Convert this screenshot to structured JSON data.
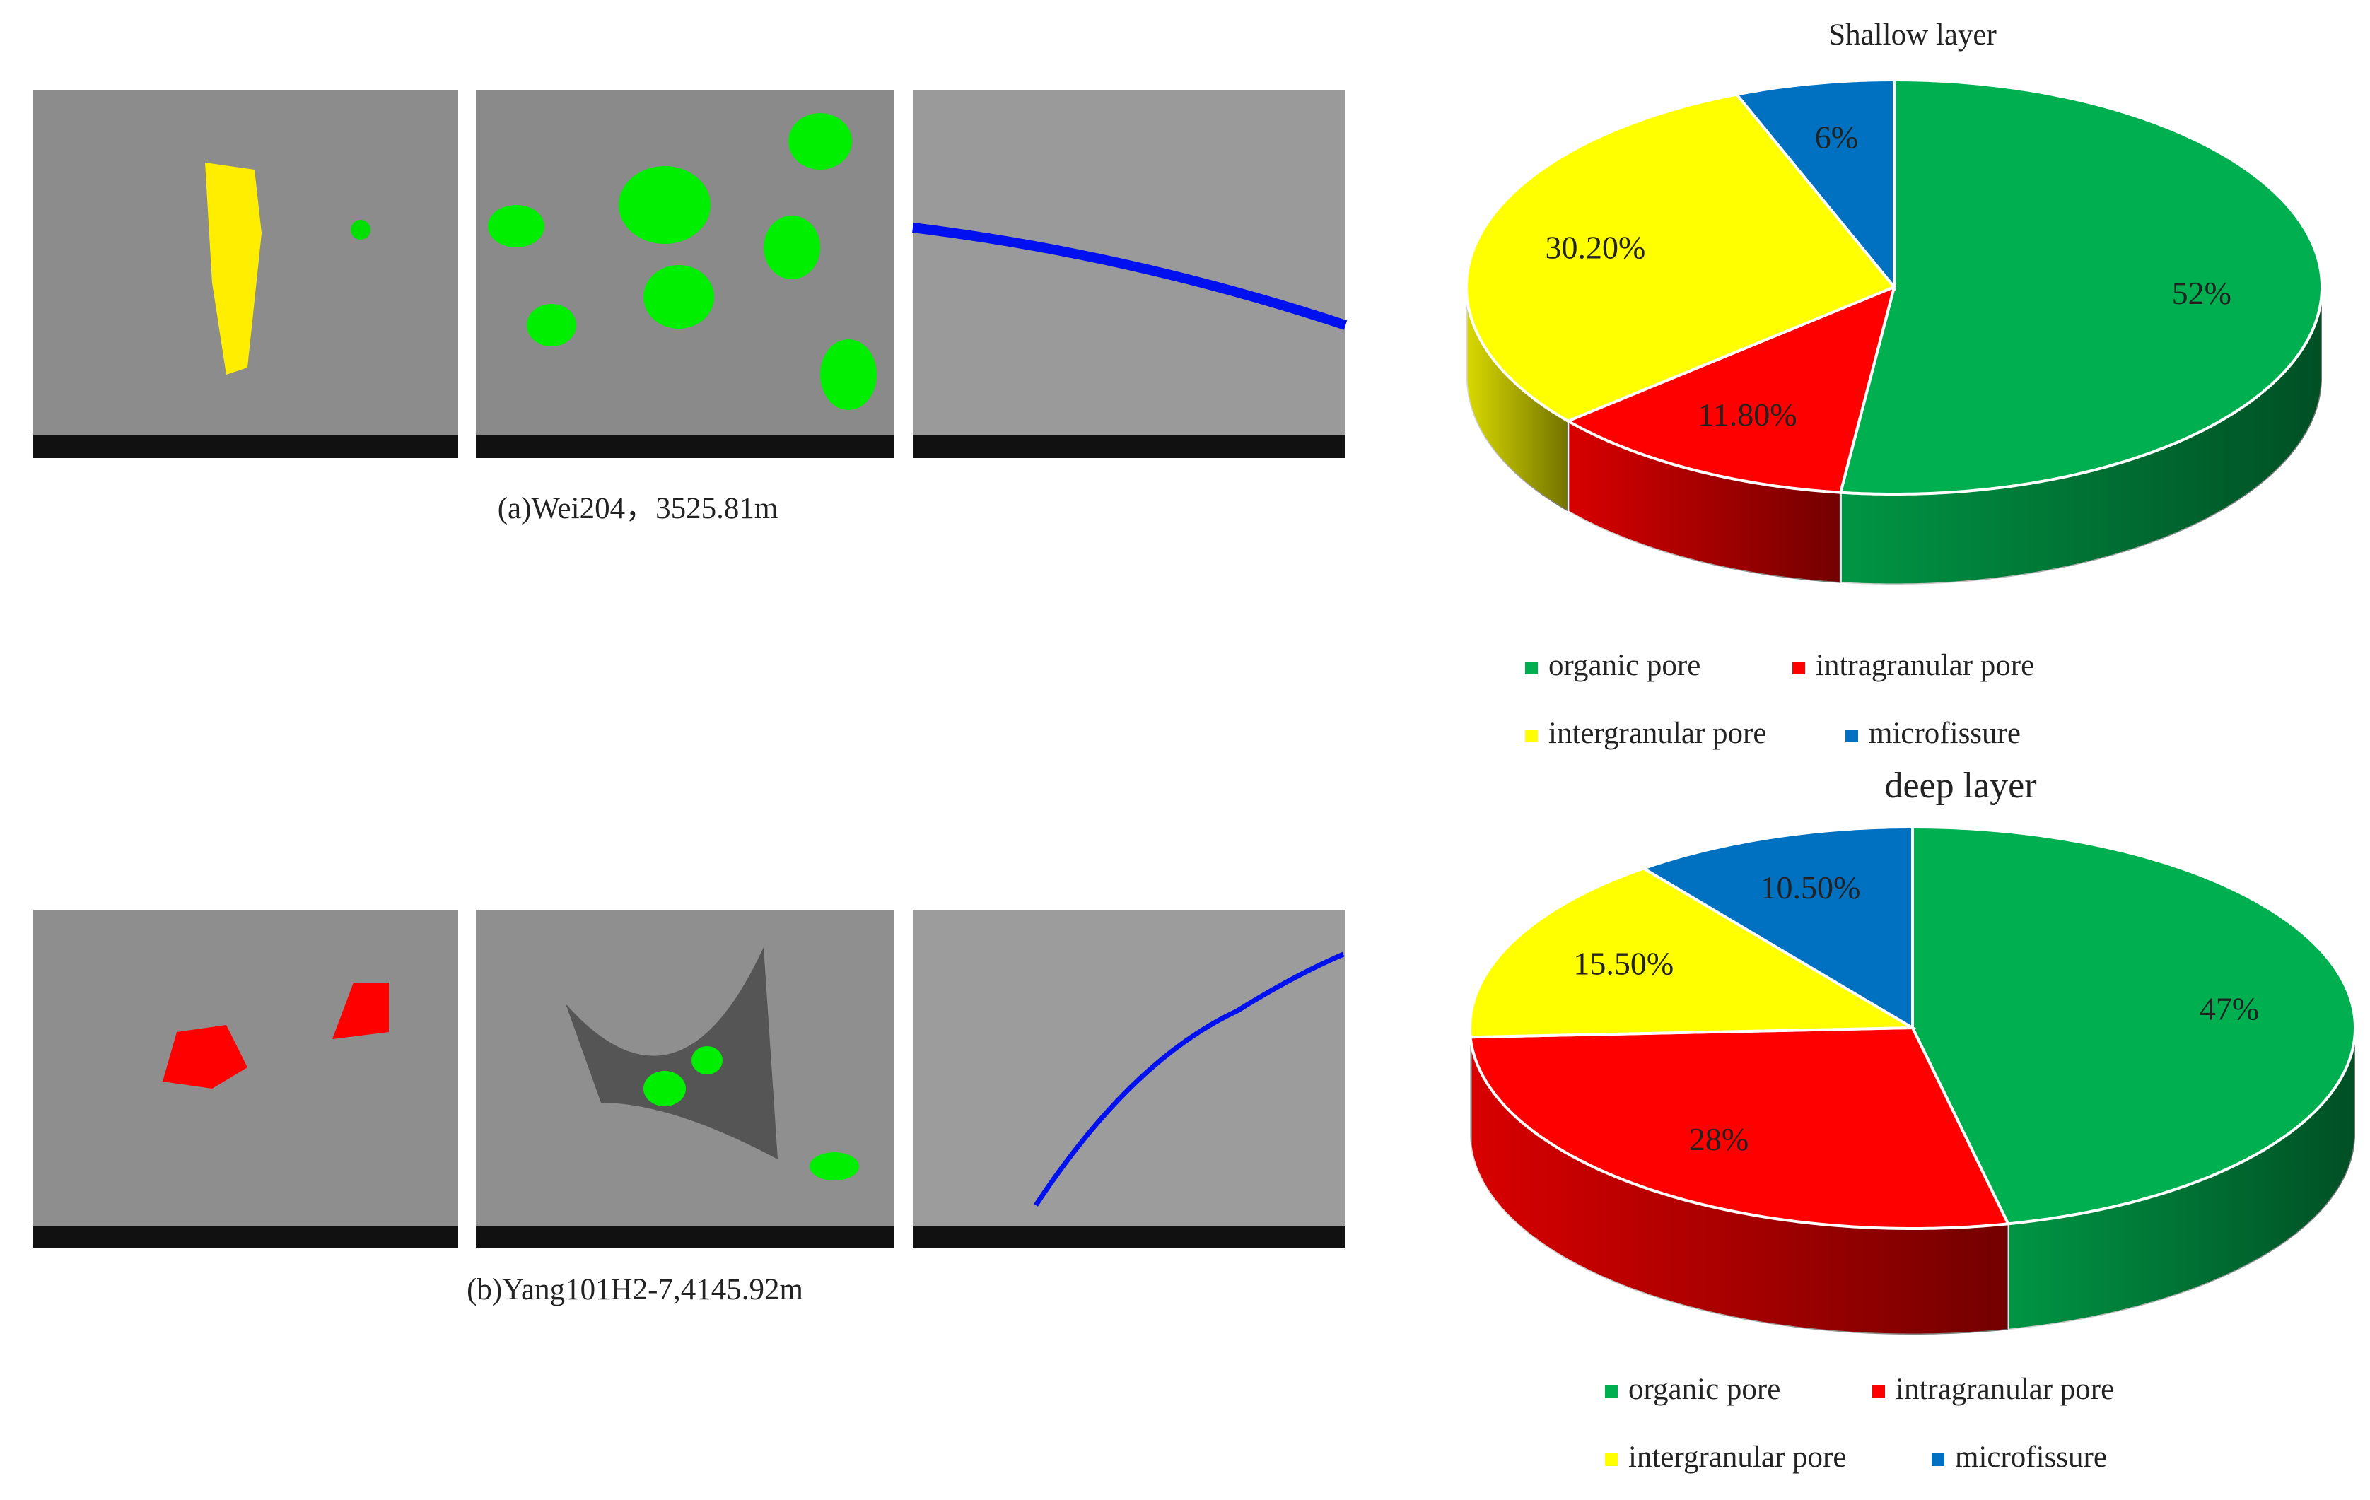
{
  "captions": [
    "(a)Wei204，3525.81m",
    "(b)Yang101H2-7,4145.92m"
  ],
  "chart_data": [
    {
      "type": "pie3d",
      "title": "Shallow layer",
      "categories": [
        "organic pore",
        "intragranular pore",
        "intergranular pore",
        "microfissure"
      ],
      "values": [
        52,
        11.8,
        30.2,
        6
      ],
      "value_labels": [
        "52%",
        "11.80%",
        "30.20%",
        "6%"
      ],
      "colors": [
        "#00b050",
        "#ff0000",
        "#ffff00",
        "#0070c0"
      ]
    },
    {
      "type": "pie3d",
      "title": "deep layer",
      "categories": [
        "organic pore",
        "intragranular pore",
        "intergranular pore",
        "microfissure"
      ],
      "values": [
        47,
        28,
        15.5,
        10.5
      ],
      "value_labels": [
        "47%",
        "28%",
        "15.50%",
        "10.50%"
      ],
      "colors": [
        "#00b050",
        "#ff0000",
        "#ffff00",
        "#0070c0"
      ]
    }
  ]
}
